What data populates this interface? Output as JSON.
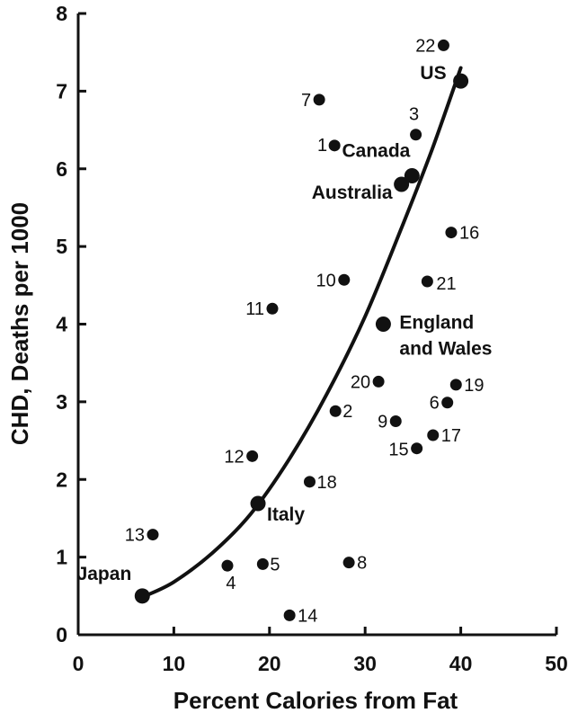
{
  "chart_data": {
    "type": "scatter",
    "title": "",
    "xlabel": "Percent Calories from Fat",
    "ylabel": "CHD, Deaths per 1000",
    "xlim": [
      0,
      50
    ],
    "ylim": [
      0,
      8
    ],
    "xticks": [
      "0",
      "10",
      "20",
      "30",
      "40",
      "50"
    ],
    "yticks": [
      "0",
      "1",
      "2",
      "3",
      "4",
      "5",
      "6",
      "7",
      "8"
    ],
    "grid": false,
    "numbered_points": [
      {
        "label": "1",
        "x": 26.8,
        "y": 6.3
      },
      {
        "label": "2",
        "x": 26.9,
        "y": 2.88
      },
      {
        "label": "3",
        "x": 35.3,
        "y": 6.44
      },
      {
        "label": "4",
        "x": 15.6,
        "y": 0.89
      },
      {
        "label": "5",
        "x": 19.3,
        "y": 0.91
      },
      {
        "label": "6",
        "x": 38.6,
        "y": 2.99
      },
      {
        "label": "7",
        "x": 25.2,
        "y": 6.89
      },
      {
        "label": "8",
        "x": 28.3,
        "y": 0.93
      },
      {
        "label": "9",
        "x": 33.2,
        "y": 2.75
      },
      {
        "label": "10",
        "x": 27.8,
        "y": 4.57
      },
      {
        "label": "11",
        "x": 20.3,
        "y": 4.2
      },
      {
        "label": "12",
        "x": 18.2,
        "y": 2.3
      },
      {
        "label": "13",
        "x": 7.8,
        "y": 1.29
      },
      {
        "label": "14",
        "x": 22.1,
        "y": 0.25
      },
      {
        "label": "15",
        "x": 35.4,
        "y": 2.4
      },
      {
        "label": "16",
        "x": 39.0,
        "y": 5.18
      },
      {
        "label": "17",
        "x": 37.1,
        "y": 2.57
      },
      {
        "label": "18",
        "x": 24.2,
        "y": 1.97
      },
      {
        "label": "19",
        "x": 39.5,
        "y": 3.22
      },
      {
        "label": "20",
        "x": 31.4,
        "y": 3.26
      },
      {
        "label": "21",
        "x": 36.5,
        "y": 4.55
      },
      {
        "label": "22",
        "x": 38.2,
        "y": 7.59
      }
    ],
    "countries": [
      {
        "label": "Japan",
        "x": 6.7,
        "y": 0.5
      },
      {
        "label": "Italy",
        "x": 18.8,
        "y": 1.69
      },
      {
        "label": "England and Wales",
        "label_lines": [
          "England",
          "and Wales"
        ],
        "x": 31.9,
        "y": 4.0
      },
      {
        "label": "Australia",
        "x": 33.8,
        "y": 5.8
      },
      {
        "label": "Canada",
        "x": 34.9,
        "y": 5.91
      },
      {
        "label": "US",
        "x": 40.0,
        "y": 7.13
      }
    ],
    "trend_curve": [
      {
        "x": 7.0,
        "y": 0.5
      },
      {
        "x": 10.0,
        "y": 0.68
      },
      {
        "x": 14.0,
        "y": 1.05
      },
      {
        "x": 18.0,
        "y": 1.55
      },
      {
        "x": 22.0,
        "y": 2.25
      },
      {
        "x": 26.0,
        "y": 3.1
      },
      {
        "x": 30.0,
        "y": 4.1
      },
      {
        "x": 34.0,
        "y": 5.3
      },
      {
        "x": 37.0,
        "y": 6.25
      },
      {
        "x": 40.0,
        "y": 7.3
      }
    ]
  }
}
